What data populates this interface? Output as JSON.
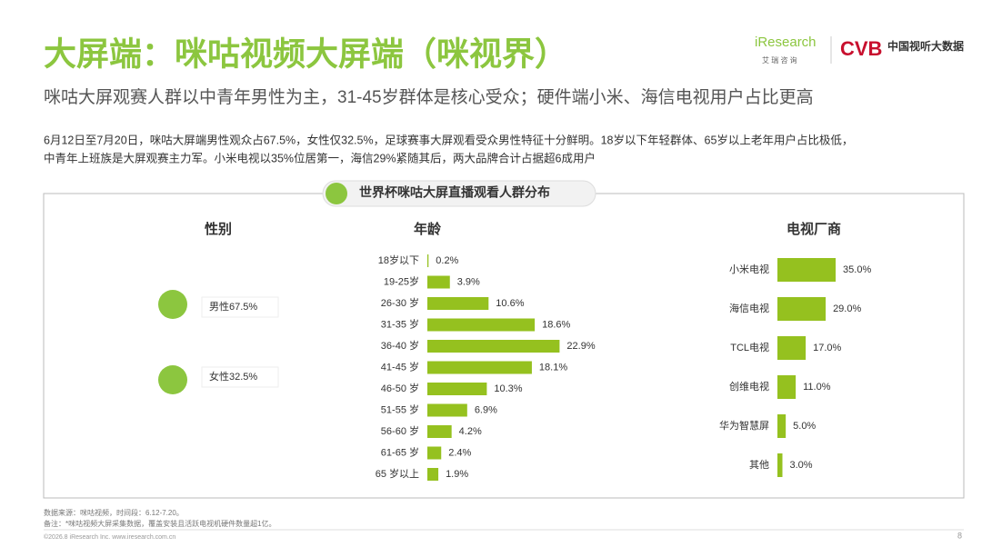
{
  "header": {
    "title": "大屏端：咪咕视频大屏端（咪视界）",
    "subtitle": "咪咕大屏观赛人群以中青年男性为主，31-45岁群体是核心受众；硬件端小米、海信电视用户占比更高",
    "body": [
      "6月12日至7月20日，咪咕大屏端男性观众占67.5%，女性仅32.5%，足球赛事大屏观看受众男性特征十分鲜明。18岁以下年轻群体、65岁以上老年用户占比极低，",
      "中青年上班族是大屏观赛主力军。小米电视以35%位居第一，海信29%紧随其后，两大品牌合计占据超6成用户"
    ]
  },
  "logos": {
    "iresearch": "iResearch",
    "iresearch_cn": "艾 瑞 咨 询",
    "cvb": "CVB",
    "cvb_cn": "中国视听大数据"
  },
  "panel_title": "世界杯咪咕大屏直播观看人群分布",
  "gender": {
    "title": "性别",
    "items": [
      "男性67.5%",
      "女性32.5%"
    ]
  },
  "chart_data": [
    {
      "type": "bar",
      "orientation": "horizontal",
      "title": "年龄",
      "color": "#95c11f",
      "categories": [
        "18岁以下",
        "19-25岁",
        "26-30 岁",
        "31-35 岁",
        "36-40 岁",
        "41-45 岁",
        "46-50 岁",
        "51-55 岁",
        "56-60 岁",
        "61-65 岁",
        "65 岁以上"
      ],
      "values": [
        0.2,
        3.9,
        10.6,
        18.6,
        22.9,
        18.1,
        10.3,
        6.9,
        4.2,
        2.4,
        1.9
      ],
      "value_labels": [
        "0.2%",
        "3.9%",
        "10.6%",
        "18.6%",
        "22.9%",
        "18.1%",
        "10.3%",
        "6.9%",
        "4.2%",
        "2.4%",
        "1.9%"
      ]
    },
    {
      "type": "bar",
      "orientation": "horizontal",
      "title": "电视厂商",
      "color": "#95c11f",
      "categories": [
        "小米电视",
        "海信电视",
        "TCL电视",
        "创维电视",
        "华为智慧屏",
        "其他"
      ],
      "values": [
        35.0,
        29.0,
        17.0,
        11.0,
        5.0,
        3.0
      ],
      "value_labels": [
        "35.0%",
        "29.0%",
        "17.0%",
        "11.0%",
        "5.0%",
        "3.0%"
      ]
    }
  ],
  "footer": {
    "source": "数据来源：咪咕视频，时间段：6.12-7.20。",
    "note": "备注：*咪咕视频大屏采集数据，覆盖安装且活跃电视机硬件数量超1亿。",
    "copyright": "©2026.8 iResearch Inc. www.iresearch.com.cn",
    "page": "8"
  }
}
